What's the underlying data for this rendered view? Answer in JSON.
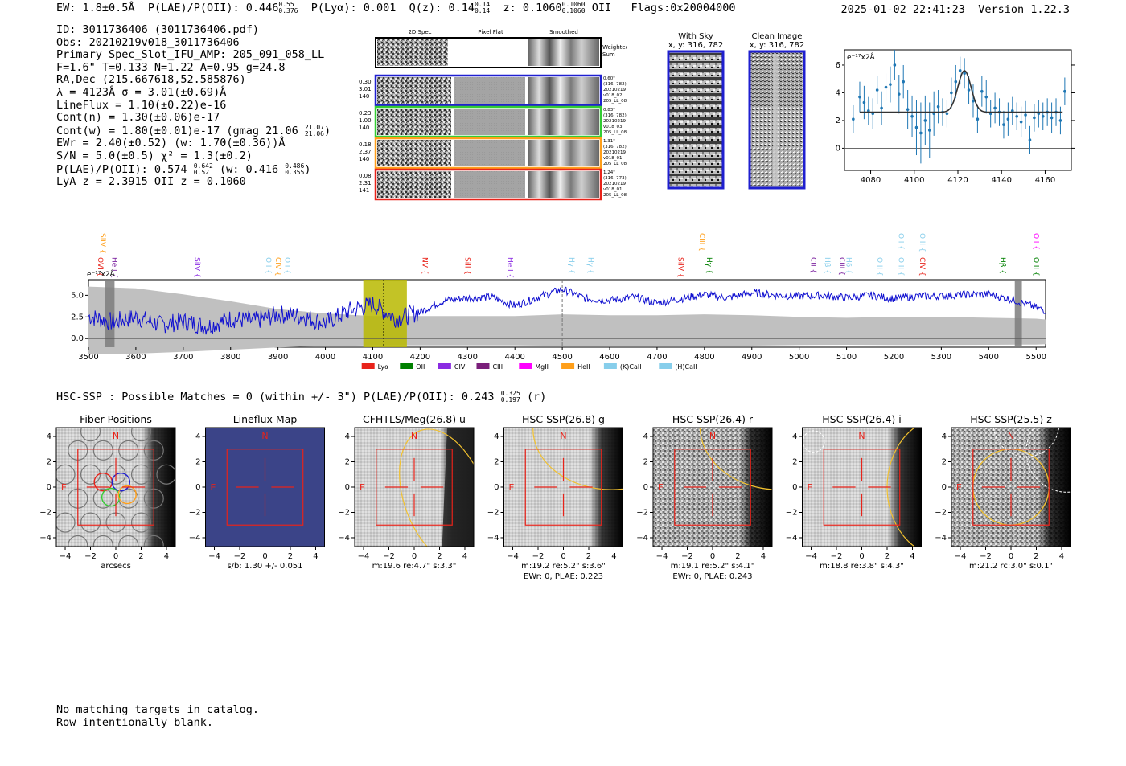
{
  "header": {
    "ew": "EW: 1.8±0.5Å",
    "plae_label": "P(LAE)/P(OII): 0.446",
    "plae_hi": "0.55",
    "plae_lo": "0.376",
    "plya": "P(Lyα): 0.001",
    "qz_label": "Q(z): 0.14",
    "qz_hi": "0.14",
    "qz_lo": "0.14",
    "z_label": "z: 0.1060",
    "z_hi": "0.1060",
    "z_lo": "0.1060",
    "z_line": "OII",
    "flags": "Flags:0x20004000",
    "datetime": "2025-01-02 22:41:23",
    "version": "Version 1.22.3"
  },
  "info": {
    "id": "ID: 3011736406 (3011736406.pdf)",
    "obs": "Obs: 20210219v018_3011736406",
    "primary": "Primary Spec_Slot_IFU_AMP: 205_091_058_LL",
    "fit": "F=1.6\"  T=0.133  N=1.22  A=0.95  g=24.8",
    "radec": "RA,Dec (215.667618,52.585876)",
    "lambda": "λ = 4123Å  σ = 3.01(±0.69)Å",
    "lineflux": "LineFlux = 1.10(±0.22)e-16",
    "contn": "Cont(n) = 1.30(±0.06)e-17",
    "contw": "Cont(w) = 1.80(±0.01)e-17 (gmag 21.06",
    "contw_hi": "21.07",
    "contw_lo": "21.06",
    "contw_end": ")",
    "ewr": "EWr = 2.40(±0.52) (w: 1.70(±0.36))Å",
    "sn": "S/N = 5.0(±0.5)  χ² = 1.3(±0.2)",
    "plae": "P(LAE)/P(OII): 0.574",
    "plae_hi": "0.642",
    "plae_lo": "0.52",
    "plae_w": "(w: 0.416",
    "plae_w_hi": "0.486",
    "plae_w_lo": "0.355",
    "plae_end": ")",
    "lyaz": "LyA z = 2.3915  OII z = 0.1060"
  },
  "cutouts": {
    "headers": [
      "2D Spec",
      "Pixel Flat",
      "Smoothed"
    ],
    "weighted": [
      "Weighted",
      "Sum"
    ],
    "rows": [
      {
        "color": "#1f1fd0",
        "left": [
          "0.30",
          "3.01",
          "140"
        ],
        "right": [
          "0.60\"",
          "(316, 782)",
          "20210219",
          "v018_02",
          "205_LL_085"
        ]
      },
      {
        "color": "#33cc33",
        "left": [
          "0.23",
          "1.00",
          "140"
        ],
        "right": [
          "0.83\"",
          "(316, 782)",
          "20210219",
          "v018_03",
          "205_LL_085"
        ]
      },
      {
        "color": "#ff9f1a",
        "left": [
          "0.18",
          "2.37",
          "140"
        ],
        "right": [
          "1.31\"",
          "(316, 782)",
          "20210219",
          "v018_01",
          "205_LL_085"
        ]
      },
      {
        "color": "#e8231a",
        "left": [
          "0.08",
          "2.31",
          "141"
        ],
        "right": [
          "1.24\"",
          "(316, 773)",
          "20210219",
          "v018_01",
          "205_LL_084"
        ]
      }
    ]
  },
  "sky": {
    "with_title": [
      "With Sky",
      "x, y: 316, 782"
    ],
    "clean_title": [
      "Clean Image",
      "x, y: 316, 782"
    ]
  },
  "zoom_chart": {
    "type": "scatter",
    "ylabel": "e⁻¹⁷x2Å",
    "xlim": [
      4068,
      4172
    ],
    "ylim": [
      -1.6,
      7.1
    ],
    "xticks": [
      4080,
      4100,
      4120,
      4140,
      4160
    ],
    "yticks": [
      0,
      2,
      4,
      6
    ],
    "points": [
      [
        4072,
        2.1,
        1.0
      ],
      [
        4075,
        3.7,
        1.1
      ],
      [
        4077,
        3.3,
        1.2
      ],
      [
        4079,
        2.7,
        1.0
      ],
      [
        4081,
        2.5,
        1.1
      ],
      [
        4083,
        4.2,
        1.0
      ],
      [
        4085,
        2.9,
        1.2
      ],
      [
        4087,
        4.4,
        1.0
      ],
      [
        4089,
        4.6,
        1.3
      ],
      [
        4091,
        6.0,
        1.1
      ],
      [
        4093,
        3.9,
        1.4
      ],
      [
        4095,
        4.8,
        1.2
      ],
      [
        4097,
        2.8,
        1.4
      ],
      [
        4099,
        2.3,
        1.5
      ],
      [
        4101,
        1.5,
        2.0
      ],
      [
        4103,
        1.1,
        2.2
      ],
      [
        4105,
        2.0,
        1.8
      ],
      [
        4107,
        1.3,
        2.0
      ],
      [
        4109,
        2.5,
        1.6
      ],
      [
        4111,
        3.0,
        1.2
      ],
      [
        4113,
        2.6,
        1.0
      ],
      [
        4115,
        2.5,
        1.0
      ],
      [
        4117,
        4.0,
        1.1
      ],
      [
        4119,
        4.8,
        1.2
      ],
      [
        4121,
        5.6,
        1.0
      ],
      [
        4123,
        5.4,
        1.1
      ],
      [
        4125,
        4.2,
        1.0
      ],
      [
        4127,
        3.4,
        1.2
      ],
      [
        4129,
        2.1,
        1.0
      ],
      [
        4131,
        4.1,
        1.1
      ],
      [
        4133,
        3.7,
        1.2
      ],
      [
        4135,
        2.5,
        1.0
      ],
      [
        4137,
        2.9,
        1.1
      ],
      [
        4139,
        2.6,
        1.0
      ],
      [
        4141,
        1.7,
        1.0
      ],
      [
        4143,
        2.1,
        1.2
      ],
      [
        4145,
        2.7,
        1.0
      ],
      [
        4147,
        2.3,
        1.0
      ],
      [
        4149,
        1.9,
        1.1
      ],
      [
        4151,
        2.4,
        1.0
      ],
      [
        4153,
        0.6,
        1.0
      ],
      [
        4155,
        2.2,
        1.0
      ],
      [
        4157,
        2.5,
        1.0
      ],
      [
        4159,
        2.3,
        1.0
      ],
      [
        4161,
        2.6,
        1.0
      ],
      [
        4163,
        2.2,
        1.1
      ],
      [
        4165,
        2.6,
        1.0
      ],
      [
        4167,
        2.0,
        1.0
      ],
      [
        4169,
        4.1,
        1.0
      ]
    ],
    "model": {
      "continuum": 2.6,
      "amplitude": 3.0,
      "center": 4123,
      "sigma": 3.01
    }
  },
  "spectrum_chart": {
    "type": "line",
    "xlim": [
      3500,
      5520
    ],
    "ylim": [
      -1.0,
      6.8
    ],
    "xticks": [
      3500,
      3600,
      3700,
      3800,
      3900,
      4000,
      4100,
      4200,
      4300,
      4400,
      4500,
      4600,
      4700,
      4800,
      4900,
      5000,
      5100,
      5200,
      5300,
      5400,
      5500
    ],
    "yticks": [
      0.0,
      2.5,
      5.0
    ],
    "ylabel": "e⁻¹⁷x2Å",
    "highlight": [
      4080,
      4172
    ],
    "line_marker": 4123,
    "dashed_marker": 4500,
    "masked": [
      [
        3535,
        3555
      ],
      [
        5455,
        5470
      ]
    ],
    "series_flux": [
      [
        3500,
        2.6
      ],
      [
        3550,
        1.9
      ],
      [
        3600,
        2.5
      ],
      [
        3650,
        1.6
      ],
      [
        3700,
        2.0
      ],
      [
        3750,
        1.4
      ],
      [
        3800,
        2.3
      ],
      [
        3850,
        2.0
      ],
      [
        3900,
        2.8
      ],
      [
        3950,
        2.6
      ],
      [
        4000,
        1.8
      ],
      [
        4050,
        3.2
      ],
      [
        4100,
        4.0
      ],
      [
        4150,
        2.3
      ],
      [
        4200,
        3.1
      ],
      [
        4250,
        4.4
      ],
      [
        4300,
        4.7
      ],
      [
        4350,
        4.8
      ],
      [
        4400,
        3.8
      ],
      [
        4450,
        4.8
      ],
      [
        4500,
        5.7
      ],
      [
        4550,
        4.6
      ],
      [
        4600,
        4.4
      ],
      [
        4650,
        4.8
      ],
      [
        4700,
        4.1
      ],
      [
        4750,
        4.6
      ],
      [
        4800,
        5.1
      ],
      [
        4850,
        4.7
      ],
      [
        4900,
        5.3
      ],
      [
        4950,
        5.0
      ],
      [
        5000,
        4.9
      ],
      [
        5050,
        5.0
      ],
      [
        5100,
        4.7
      ],
      [
        5150,
        5.0
      ],
      [
        5200,
        4.6
      ],
      [
        5250,
        4.9
      ],
      [
        5300,
        4.9
      ],
      [
        5350,
        5.1
      ],
      [
        5400,
        5.1
      ],
      [
        5450,
        4.5
      ],
      [
        5500,
        3.6
      ],
      [
        5520,
        3.2
      ]
    ],
    "series_sky": [
      [
        3500,
        6.0
      ],
      [
        3600,
        5.8
      ],
      [
        3700,
        5.1
      ],
      [
        3800,
        4.3
      ],
      [
        3900,
        3.4
      ],
      [
        4000,
        2.9
      ],
      [
        4100,
        2.6
      ],
      [
        4200,
        2.6
      ],
      [
        4300,
        2.6
      ],
      [
        4400,
        2.6
      ],
      [
        4500,
        2.8
      ],
      [
        4600,
        2.7
      ],
      [
        4700,
        2.7
      ],
      [
        4800,
        2.8
      ],
      [
        4900,
        2.7
      ],
      [
        5000,
        2.5
      ],
      [
        5100,
        2.4
      ],
      [
        5200,
        2.5
      ],
      [
        5300,
        2.5
      ],
      [
        5400,
        2.4
      ],
      [
        5500,
        2.3
      ],
      [
        5520,
        2.2
      ]
    ],
    "lines_upper": [
      {
        "label": "SiIV",
        "x": 3520,
        "color": "#ff9f1a"
      },
      {
        "label": "CIII",
        "x": 4785,
        "color": "#ff9f1a"
      },
      {
        "label": "OII",
        "x": 5205,
        "color": "#87ceeb"
      },
      {
        "label": "OIII",
        "x": 5250,
        "color": "#87ceeb"
      },
      {
        "label": "OII",
        "x": 5490,
        "color": "#ff00ff"
      }
    ],
    "lines_lower": [
      {
        "label": "OVI",
        "x": 3515,
        "color": "#e8231a"
      },
      {
        "label": "HeII",
        "x": 3545,
        "color": "#7a1f9e"
      },
      {
        "label": "SiIV",
        "x": 3720,
        "color": "#8a2be2"
      },
      {
        "label": "OII",
        "x": 3870,
        "color": "#87ceeb"
      },
      {
        "label": "CIV",
        "x": 3890,
        "color": "#ff9f1a"
      },
      {
        "label": "OII",
        "x": 3910,
        "color": "#87ceeb"
      },
      {
        "label": "NV",
        "x": 4200,
        "color": "#e8231a"
      },
      {
        "label": "SiII",
        "x": 4290,
        "color": "#e8231a"
      },
      {
        "label": "HeII",
        "x": 4380,
        "color": "#8a2be2"
      },
      {
        "label": "Hγ",
        "x": 4510,
        "color": "#87ceeb"
      },
      {
        "label": "Hγ",
        "x": 4550,
        "color": "#87ceeb"
      },
      {
        "label": "SiIV",
        "x": 4740,
        "color": "#e8231a"
      },
      {
        "label": "Hγ",
        "x": 4800,
        "color": "#008000"
      },
      {
        "label": "CII",
        "x": 5020,
        "color": "#7a1f9e"
      },
      {
        "label": "Hβ",
        "x": 5050,
        "color": "#87ceeb"
      },
      {
        "label": "CIII",
        "x": 5080,
        "color": "#7a1f9e"
      },
      {
        "label": "Hδ",
        "x": 5095,
        "color": "#87ceeb"
      },
      {
        "label": "OIII",
        "x": 5160,
        "color": "#87ceeb"
      },
      {
        "label": "OIII",
        "x": 5205,
        "color": "#87ceeb"
      },
      {
        "label": "CIV",
        "x": 5250,
        "color": "#e8231a"
      },
      {
        "label": "Hβ",
        "x": 5420,
        "color": "#008000"
      },
      {
        "label": "OIII",
        "x": 5490,
        "color": "#008000"
      }
    ],
    "legend": [
      {
        "label": "Lyα",
        "color": "#e8231a"
      },
      {
        "label": "OII",
        "color": "#008000"
      },
      {
        "label": "CIV",
        "color": "#8a2be2"
      },
      {
        "label": "CIII",
        "color": "#7a1f7a"
      },
      {
        "label": "MgII",
        "color": "#ff00ff"
      },
      {
        "label": "HeII",
        "color": "#ff9f1a"
      },
      {
        "label": "(K)CaII",
        "color": "#87ceeb"
      },
      {
        "label": "(H)CaII",
        "color": "#87ceeb"
      }
    ]
  },
  "hsc": {
    "line_label": "HSC-SSP : Possible Matches = 0 (within +/- 3\")  P(LAE)/P(OII): 0.243",
    "line_hi": "0.325",
    "line_lo": "0.197",
    "line_end": "(r)"
  },
  "stamps": {
    "xticks": [
      -4,
      -2,
      0,
      2,
      4
    ],
    "yticks": [
      4,
      2,
      0,
      -2,
      -4
    ],
    "north": "N",
    "east": "E",
    "panels": [
      {
        "title": "Fiber Positions",
        "caption": [
          "arcsecs"
        ],
        "kind": "fibers"
      },
      {
        "title": "Lineflux Map",
        "caption": [
          "s/b: 1.30 +/- 0.051"
        ],
        "kind": "flat"
      },
      {
        "title": "CFHTLS/Meg(26.8) u",
        "caption": [
          "m:19.6  re:4.7\"  s:3.3\""
        ],
        "kind": "u"
      },
      {
        "title": "HSC SSP(26.8) g",
        "caption": [
          "m:19.2  re:5.2\"  s:3.6\"",
          "EWr: 0, PLAE: 0.223"
        ],
        "kind": "g"
      },
      {
        "title": "HSC SSP(26.4) r",
        "caption": [
          "m:19.1  re:5.2\"  s:4.1\"",
          "EWr: 0, PLAE: 0.243"
        ],
        "kind": "r"
      },
      {
        "title": "HSC SSP(26.4) i",
        "caption": [
          "m:18.8  re:3.8\"  s:4.3\""
        ],
        "kind": "i"
      },
      {
        "title": "HSC SSP(25.5) z",
        "caption": [
          "m:21.2  rc:3.0\"  s:0.1\""
        ],
        "kind": "z"
      }
    ]
  },
  "footer": {
    "line1": "No matching targets in catalog.",
    "line2": "Row intentionally blank."
  }
}
